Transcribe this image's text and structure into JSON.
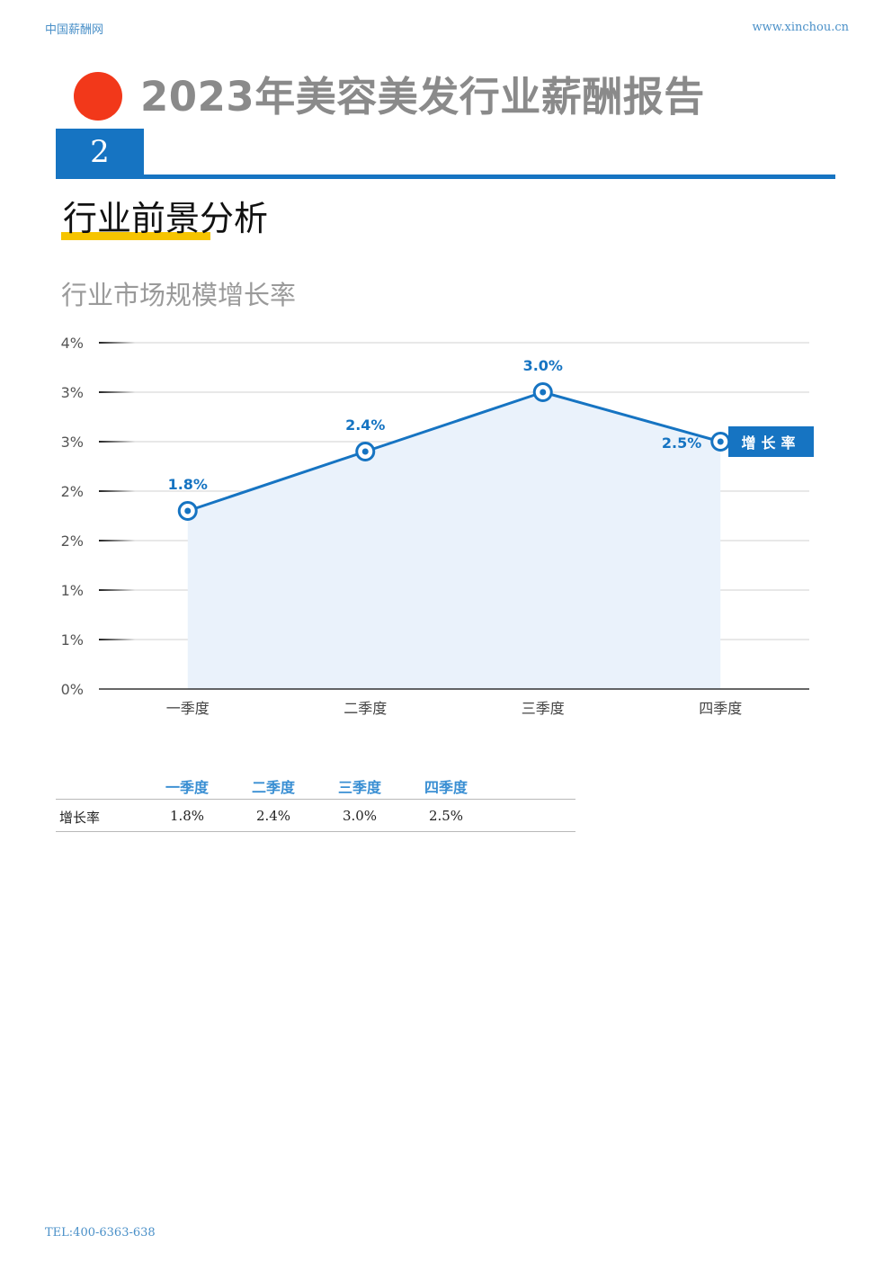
{
  "header": {
    "site_name": "中国薪酬网",
    "site_url": "www.xinchou.cn"
  },
  "report_title": "2023年美容美发行业薪酬报告",
  "section": {
    "number": "2",
    "heading": "行业前景分析"
  },
  "chart_data": {
    "type": "area",
    "title": "行业市场规模增长率",
    "categories": [
      "一季度",
      "二季度",
      "三季度",
      "四季度"
    ],
    "series": [
      {
        "name": "增长率",
        "values": [
          1.8,
          2.4,
          3.0,
          2.5
        ],
        "labels": [
          "1.8%",
          "2.4%",
          "3.0%",
          "2.5%"
        ]
      }
    ],
    "y_ticks": [
      {
        "value": 0,
        "label": "0%"
      },
      {
        "value": 0.5,
        "label": "1%"
      },
      {
        "value": 1.0,
        "label": "1%"
      },
      {
        "value": 1.5,
        "label": "2%"
      },
      {
        "value": 2.0,
        "label": "2%"
      },
      {
        "value": 2.5,
        "label": "3%"
      },
      {
        "value": 3.0,
        "label": "3%"
      },
      {
        "value": 3.5,
        "label": "4%"
      }
    ],
    "ylim": [
      0,
      3.5
    ],
    "grid": true,
    "legend_placement": "right",
    "line_color": "#1674c2",
    "fill_color": "#eaf2fb"
  },
  "table": {
    "columns": [
      "一季度",
      "二季度",
      "三季度",
      "四季度"
    ],
    "row_label": "增长率",
    "values": [
      "1.8%",
      "2.4%",
      "3.0%",
      "2.5%"
    ]
  },
  "footer": {
    "tel": "TEL:400-6363-638"
  }
}
